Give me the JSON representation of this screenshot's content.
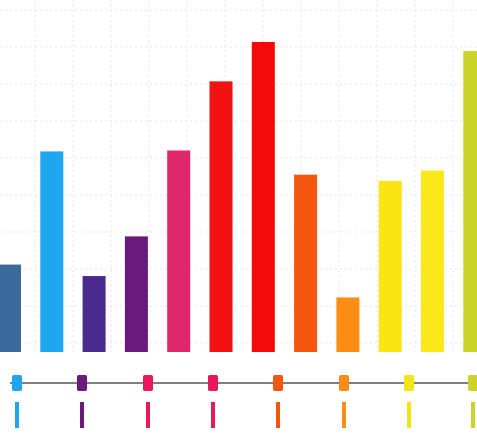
{
  "chart_data": {
    "type": "bar",
    "title": "",
    "xlabel": "",
    "ylabel": "",
    "grid": true,
    "legend": "none",
    "ylim": [
      0,
      100
    ],
    "bars": [
      {
        "value": 28.2,
        "color": "#3a6a9b"
      },
      {
        "value": 64.7,
        "color": "#1ea6f0"
      },
      {
        "value": 24.5,
        "color": "#4a2a8c"
      },
      {
        "value": 37.3,
        "color": "#6a1a7a"
      },
      {
        "value": 65.0,
        "color": "#e0266a"
      },
      {
        "value": 87.3,
        "color": "#f21212"
      },
      {
        "value": 100.0,
        "color": "#f50a0a"
      },
      {
        "value": 57.2,
        "color": "#f5560f"
      },
      {
        "value": 17.6,
        "color": "#fb8c14"
      },
      {
        "value": 55.2,
        "color": "#fbe414"
      },
      {
        "value": 58.5,
        "color": "#fae81a"
      },
      {
        "value": 97.1,
        "color": "#ccd42a"
      }
    ],
    "timeline_markers": [
      {
        "color": "#1ea6f0"
      },
      {
        "color": "#6a1a7a"
      },
      {
        "color": "#e8185a"
      },
      {
        "color": "#e8185a"
      },
      {
        "color": "#f5560f"
      },
      {
        "color": "#fb8c14"
      },
      {
        "color": "#f5e414"
      },
      {
        "color": "#ccd42a"
      }
    ]
  }
}
